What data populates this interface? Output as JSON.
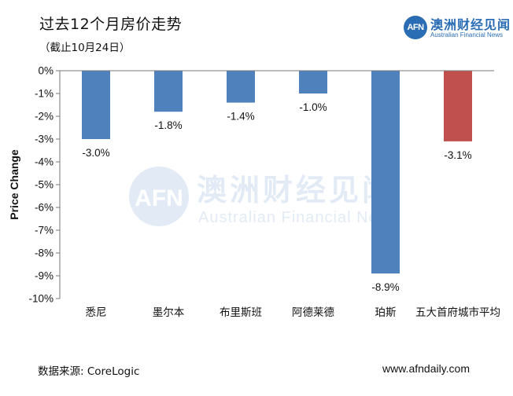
{
  "header": {
    "title": "过去12个月房价走势",
    "subtitle": "（截止10月24日）"
  },
  "brand": {
    "mark": "AFN",
    "name_cn": "澳洲财经见闻",
    "name_en": "Australian Financial News",
    "color": "#2a6db4"
  },
  "footer": {
    "source": "数据来源: CoreLogic",
    "website": "www.afndaily.com"
  },
  "watermark": {
    "mark": "AFN",
    "name_cn": "澳洲财经见闻",
    "name_en": "Australian Financial News"
  },
  "chart_data": {
    "type": "bar",
    "title": "过去12个月房价走势",
    "xlabel": "",
    "ylabel": "Price Change",
    "ylim": [
      -10,
      0
    ],
    "yticks": [
      "0%",
      "-1%",
      "-2%",
      "-3%",
      "-4%",
      "-5%",
      "-6%",
      "-7%",
      "-8%",
      "-9%",
      "-10%"
    ],
    "categories": [
      "悉尼",
      "墨尔本",
      "布里斯班",
      "阿德莱德",
      "珀斯",
      "五大首府城市平均"
    ],
    "values": [
      -3.0,
      -1.8,
      -1.4,
      -1.0,
      -8.9,
      -3.1
    ],
    "data_labels": [
      "-3.0%",
      "-1.8%",
      "-1.4%",
      "-1.0%",
      "-8.9%",
      "-3.1%"
    ],
    "colors": [
      "#4f81bd",
      "#4f81bd",
      "#4f81bd",
      "#4f81bd",
      "#4f81bd",
      "#c0504d"
    ],
    "grid": false
  }
}
